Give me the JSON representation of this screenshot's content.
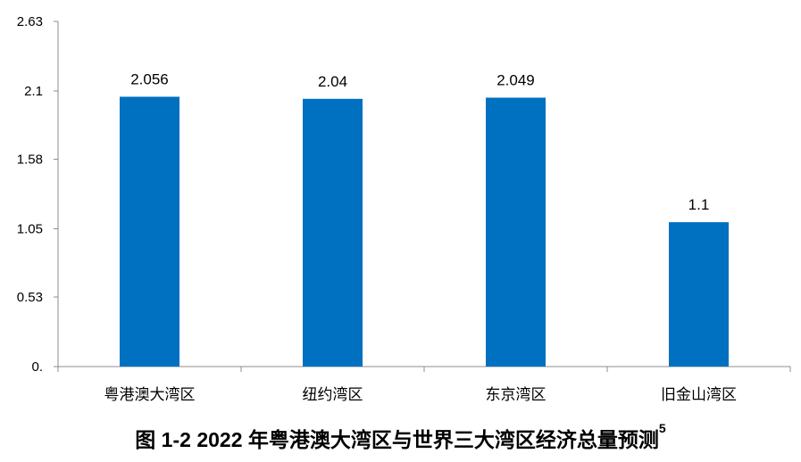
{
  "chart_data": {
    "type": "bar",
    "categories": [
      "粤港澳大湾区",
      "纽约湾区",
      "东京湾区",
      "旧金山湾区"
    ],
    "values": [
      2.056,
      2.04,
      2.049,
      1.1
    ],
    "data_labels": [
      "2.056",
      "2.04",
      "2.049",
      "1.1"
    ],
    "y_ticks": [
      0,
      0.53,
      1.05,
      1.58,
      2.1,
      2.63
    ],
    "y_tick_labels": [
      "0.",
      "0.53",
      "1.05",
      "1.58",
      "2.1",
      "2.63"
    ],
    "ylim": [
      0,
      2.63
    ],
    "grid": false,
    "bar_color": "#0070C0",
    "xlabel": "",
    "ylabel": ""
  },
  "caption": {
    "text": "图 1-2 2022 年粤港澳大湾区与世界三大湾区经济总量预测",
    "footnote": "5"
  }
}
